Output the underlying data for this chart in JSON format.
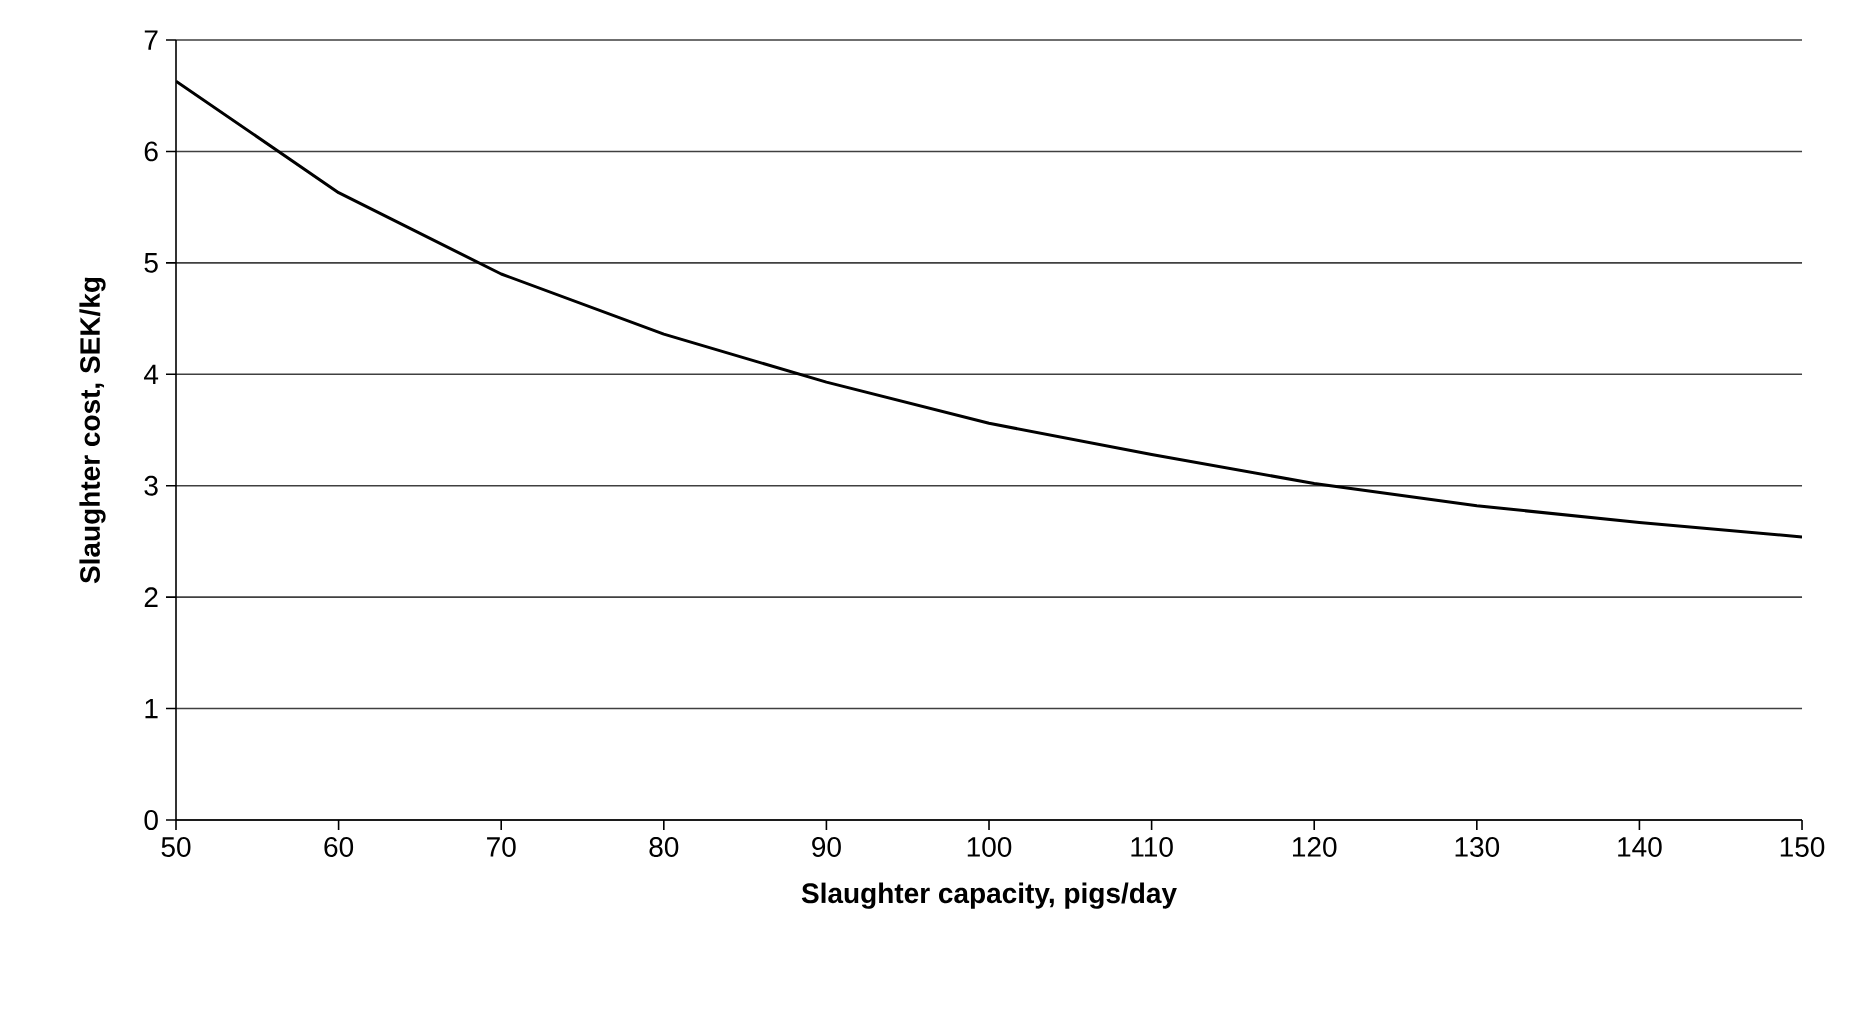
{
  "chart_data": {
    "type": "line",
    "xlabel": "Slaughter capacity, pigs/day",
    "ylabel": "Slaughter cost, SEK/kg",
    "x": [
      50,
      60,
      70,
      80,
      90,
      100,
      110,
      120,
      130,
      140,
      150
    ],
    "series": [
      {
        "color": "#000000",
        "values": [
          6.63,
          5.63,
          4.9,
          4.36,
          3.93,
          3.56,
          3.28,
          3.02,
          2.82,
          2.67,
          2.54
        ]
      }
    ],
    "xlim": [
      50,
      150
    ],
    "ylim": [
      0,
      7
    ],
    "xticks": [
      50,
      60,
      70,
      80,
      90,
      100,
      110,
      120,
      130,
      140,
      150
    ],
    "yticks": [
      0,
      1,
      2,
      3,
      4,
      5,
      6,
      7
    ],
    "grid": "y",
    "marker": "none",
    "line_style": "solid"
  }
}
